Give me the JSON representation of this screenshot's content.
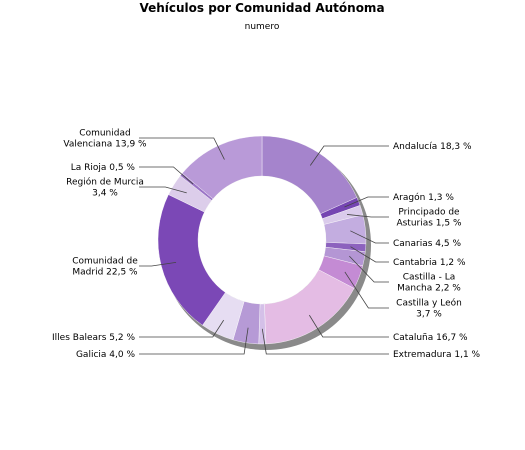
{
  "chart_data": {
    "type": "pie",
    "donut": true,
    "title": "Vehículos por Comunidad Autónoma",
    "subtitle": "numero",
    "start_angle_deg": 0,
    "direction": "clockwise",
    "slices": [
      {
        "name": "Andalucía",
        "value": 18.3,
        "label": [
          "Andalucía 18,3 %"
        ],
        "color": "#a584cc",
        "side": "right"
      },
      {
        "name": "Aragón",
        "value": 1.3,
        "label": [
          "Aragón 1,3 %"
        ],
        "color": "#7545b2",
        "side": "right"
      },
      {
        "name": "Principado de Asturias",
        "value": 1.5,
        "label": [
          "Principado de",
          "Asturias 1,5 %"
        ],
        "color": "#dacbeb",
        "side": "right"
      },
      {
        "name": "Canarias",
        "value": 4.5,
        "label": [
          "Canarias 4,5 %"
        ],
        "color": "#c3ade0",
        "side": "right"
      },
      {
        "name": "Cantabria",
        "value": 1.2,
        "label": [
          "Cantabria 1,2 %"
        ],
        "color": "#8c62be",
        "side": "right"
      },
      {
        "name": "Castilla - La Mancha",
        "value": 2.2,
        "label": [
          "Castilla - La",
          "Mancha 2,2 %"
        ],
        "color": "#b496d4",
        "side": "right"
      },
      {
        "name": "Castilla y León",
        "value": 3.7,
        "label": [
          "Castilla y León",
          "3,7 %"
        ],
        "color": "#c48bd4",
        "side": "right"
      },
      {
        "name": "Cataluña",
        "value": 16.7,
        "label": [
          "Cataluña 16,7 %"
        ],
        "color": "#e4bce4",
        "side": "right"
      },
      {
        "name": "Extremadura",
        "value": 1.1,
        "label": [
          "Extremadura 1,1 %"
        ],
        "color": "#d4c0e8",
        "side": "right"
      },
      {
        "name": "Galicia",
        "value": 4.0,
        "label": [
          "Galicia 4,0 %"
        ],
        "color": "#b69ad6",
        "side": "left"
      },
      {
        "name": "Illes Balears",
        "value": 5.2,
        "label": [
          "Illes Balears 5,2 %"
        ],
        "color": "#e6ddf2",
        "side": "left"
      },
      {
        "name": "Comunidad de Madrid",
        "value": 22.5,
        "label": [
          "Comunidad de",
          "Madrid 22,5 %"
        ],
        "color": "#7b48b6",
        "side": "left"
      },
      {
        "name": "Región de Murcia",
        "value": 3.4,
        "label": [
          "Región de Murcia",
          "3,4 %"
        ],
        "color": "#dccdea",
        "side": "left"
      },
      {
        "name": "La Rioja",
        "value": 0.5,
        "label": [
          "La Rioja 0,5 %"
        ],
        "color": "#9a74c6",
        "side": "left"
      },
      {
        "name": "Comunidad Valenciana",
        "value": 13.9,
        "label": [
          "Comunidad",
          "Valenciana 13,9 %"
        ],
        "color": "#b99ad8",
        "side": "left"
      }
    ]
  }
}
